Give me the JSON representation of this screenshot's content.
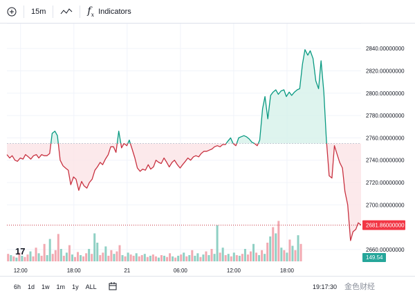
{
  "toolbar": {
    "add_icon": "plus-circle-icon",
    "interval": "15m",
    "chart_type_icon": "line-chart-icon",
    "indicators_icon": "fx-icon",
    "indicators_label": "Indicators"
  },
  "colors": {
    "up_line": "#089981",
    "down_line": "#c8303f",
    "up_fill": "#d6f1ea",
    "down_fill": "#fbe4e6",
    "vol_up": "#8fd0c4",
    "vol_down": "#f2a9b1",
    "last_price_bg": "#f23645",
    "last_vol_bg": "#26a69a",
    "grid": "#f0f3fa",
    "baseline": "#c2c8d3"
  },
  "chart_data": {
    "type": "line",
    "baseline": 2755,
    "ylim": [
      2655,
      2850
    ],
    "y_ticks": [
      "2840.00000000",
      "2820.00000000",
      "2800.00000000",
      "2780.00000000",
      "2760.00000000",
      "2740.00000000",
      "2720.00000000",
      "2700.00000000",
      "2660.00000000"
    ],
    "x_ticks": [
      "12:00",
      "18:00",
      "21",
      "06:00",
      "12:00",
      "18:00"
    ],
    "x_tick_pos": [
      4.4,
      21.6,
      38.8,
      56.0,
      73.2,
      90.4
    ],
    "x_max": 99.7,
    "price": [
      [
        0,
        2745
      ],
      [
        0.9,
        2742
      ],
      [
        1.7,
        2744
      ],
      [
        2.6,
        2740
      ],
      [
        3.4,
        2739
      ],
      [
        4.3,
        2742
      ],
      [
        5.2,
        2741
      ],
      [
        6.0,
        2745
      ],
      [
        6.9,
        2743
      ],
      [
        7.7,
        2741
      ],
      [
        8.6,
        2744
      ],
      [
        9.5,
        2745
      ],
      [
        10.3,
        2742
      ],
      [
        11.2,
        2745
      ],
      [
        12.0,
        2744
      ],
      [
        12.9,
        2744
      ],
      [
        13.8,
        2746
      ],
      [
        14.6,
        2764
      ],
      [
        15.5,
        2766
      ],
      [
        16.3,
        2762
      ],
      [
        17.2,
        2740
      ],
      [
        18.1,
        2735
      ],
      [
        18.9,
        2733
      ],
      [
        19.8,
        2731
      ],
      [
        20.6,
        2718
      ],
      [
        21.5,
        2725
      ],
      [
        22.3,
        2723
      ],
      [
        23.2,
        2713
      ],
      [
        24.1,
        2721
      ],
      [
        24.9,
        2717
      ],
      [
        25.8,
        2715
      ],
      [
        26.6,
        2720
      ],
      [
        27.5,
        2723
      ],
      [
        28.4,
        2731
      ],
      [
        29.2,
        2734
      ],
      [
        30.1,
        2738
      ],
      [
        30.9,
        2736
      ],
      [
        31.8,
        2741
      ],
      [
        32.7,
        2745
      ],
      [
        33.5,
        2752
      ],
      [
        34.4,
        2752
      ],
      [
        35.2,
        2747
      ],
      [
        36.1,
        2766
      ],
      [
        37.0,
        2751
      ],
      [
        37.8,
        2755
      ],
      [
        38.7,
        2753
      ],
      [
        39.5,
        2758
      ],
      [
        40.4,
        2750
      ],
      [
        41.3,
        2742
      ],
      [
        42.1,
        2733
      ],
      [
        43.0,
        2730
      ],
      [
        43.8,
        2732
      ],
      [
        44.7,
        2731
      ],
      [
        45.6,
        2736
      ],
      [
        46.4,
        2732
      ],
      [
        47.3,
        2734
      ],
      [
        48.1,
        2740
      ],
      [
        49.0,
        2738
      ],
      [
        49.8,
        2737
      ],
      [
        50.7,
        2742
      ],
      [
        51.6,
        2738
      ],
      [
        52.4,
        2734
      ],
      [
        53.3,
        2738
      ],
      [
        54.1,
        2740
      ],
      [
        55.0,
        2736
      ],
      [
        55.9,
        2733
      ],
      [
        56.7,
        2736
      ],
      [
        57.6,
        2739
      ],
      [
        58.4,
        2742
      ],
      [
        59.3,
        2740
      ],
      [
        60.2,
        2743
      ],
      [
        61.0,
        2744
      ],
      [
        61.9,
        2743
      ],
      [
        62.7,
        2746
      ],
      [
        63.6,
        2748
      ],
      [
        64.5,
        2748
      ],
      [
        65.3,
        2749
      ],
      [
        66.2,
        2750
      ],
      [
        67.0,
        2752
      ],
      [
        67.9,
        2753
      ],
      [
        68.8,
        2752
      ],
      [
        69.6,
        2754
      ],
      [
        70.5,
        2754
      ],
      [
        71.3,
        2757
      ],
      [
        72.2,
        2760
      ],
      [
        73.0,
        2755
      ],
      [
        73.9,
        2753
      ],
      [
        74.8,
        2760
      ],
      [
        75.6,
        2761
      ],
      [
        76.5,
        2762
      ],
      [
        77.3,
        2761
      ],
      [
        78.2,
        2759
      ],
      [
        79.1,
        2756
      ],
      [
        79.9,
        2755
      ],
      [
        80.8,
        2753
      ],
      [
        81.6,
        2758
      ],
      [
        82.5,
        2786
      ],
      [
        83.3,
        2797
      ],
      [
        84.2,
        2777
      ],
      [
        85.1,
        2798
      ],
      [
        85.9,
        2801
      ],
      [
        86.8,
        2803
      ],
      [
        87.6,
        2799
      ],
      [
        88.5,
        2802
      ],
      [
        89.4,
        2803
      ],
      [
        90.2,
        2797
      ],
      [
        91.1,
        2801
      ],
      [
        91.9,
        2798
      ],
      [
        92.8,
        2801
      ],
      [
        93.7,
        2803
      ],
      [
        94.5,
        2804
      ],
      [
        95.4,
        2826
      ],
      [
        96.2,
        2839
      ],
      [
        97.1,
        2834
      ],
      [
        97.9,
        2838
      ],
      [
        98.8,
        2831
      ],
      [
        99.7,
        2811
      ]
    ],
    "price_tail": [
      [
        100.6,
        2804
      ],
      [
        101.4,
        2829
      ],
      [
        102.3,
        2801
      ],
      [
        103.1,
        2759
      ],
      [
        104.0,
        2726
      ],
      [
        104.9,
        2724
      ],
      [
        105.7,
        2753
      ],
      [
        106.6,
        2745
      ],
      [
        107.4,
        2738
      ],
      [
        108.3,
        2733
      ],
      [
        109.1,
        2712
      ],
      [
        110.0,
        2700
      ],
      [
        110.9,
        2668
      ],
      [
        111.7,
        2676
      ],
      [
        112.6,
        2678
      ],
      [
        113.4,
        2684
      ],
      [
        114.3,
        2681.86
      ]
    ],
    "last_price": "2681.86000000",
    "last_volume": "149.54",
    "volume": [
      [
        0.5,
        12,
        "d"
      ],
      [
        1.4,
        10,
        "u"
      ],
      [
        2.3,
        8,
        "d"
      ],
      [
        3.2,
        6,
        "u"
      ],
      [
        4.1,
        14,
        "d"
      ],
      [
        5.0,
        9,
        "u"
      ],
      [
        5.9,
        7,
        "d"
      ],
      [
        6.8,
        11,
        "d"
      ],
      [
        7.7,
        16,
        "u"
      ],
      [
        8.6,
        8,
        "d"
      ],
      [
        9.5,
        22,
        "d"
      ],
      [
        10.4,
        13,
        "u"
      ],
      [
        11.3,
        9,
        "d"
      ],
      [
        12.2,
        28,
        "d"
      ],
      [
        13.1,
        10,
        "u"
      ],
      [
        14.0,
        36,
        "u"
      ],
      [
        14.9,
        12,
        "d"
      ],
      [
        15.8,
        18,
        "d"
      ],
      [
        16.7,
        44,
        "d"
      ],
      [
        17.6,
        20,
        "u"
      ],
      [
        18.5,
        9,
        "d"
      ],
      [
        19.4,
        14,
        "u"
      ],
      [
        20.3,
        26,
        "d"
      ],
      [
        21.2,
        11,
        "u"
      ],
      [
        22.1,
        7,
        "d"
      ],
      [
        23.0,
        15,
        "d"
      ],
      [
        23.9,
        10,
        "u"
      ],
      [
        24.8,
        8,
        "d"
      ],
      [
        25.7,
        13,
        "d"
      ],
      [
        26.6,
        20,
        "u"
      ],
      [
        27.5,
        12,
        "d"
      ],
      [
        28.4,
        45,
        "u"
      ],
      [
        29.3,
        30,
        "u"
      ],
      [
        30.2,
        10,
        "d"
      ],
      [
        31.1,
        14,
        "d"
      ],
      [
        32.0,
        24,
        "u"
      ],
      [
        32.9,
        9,
        "d"
      ],
      [
        33.8,
        18,
        "d"
      ],
      [
        34.7,
        12,
        "u"
      ],
      [
        35.6,
        16,
        "d"
      ],
      [
        36.5,
        26,
        "d"
      ],
      [
        37.4,
        10,
        "u"
      ],
      [
        38.3,
        8,
        "d"
      ],
      [
        39.2,
        14,
        "u"
      ],
      [
        40.1,
        11,
        "d"
      ],
      [
        41.0,
        9,
        "d"
      ],
      [
        41.9,
        13,
        "u"
      ],
      [
        42.8,
        8,
        "d"
      ],
      [
        43.7,
        10,
        "d"
      ],
      [
        44.6,
        12,
        "u"
      ],
      [
        45.5,
        7,
        "d"
      ],
      [
        46.4,
        9,
        "u"
      ],
      [
        47.3,
        11,
        "d"
      ],
      [
        48.2,
        8,
        "d"
      ],
      [
        49.1,
        6,
        "u"
      ],
      [
        50.0,
        10,
        "d"
      ],
      [
        50.9,
        9,
        "u"
      ],
      [
        51.8,
        7,
        "d"
      ],
      [
        52.7,
        13,
        "d"
      ],
      [
        53.6,
        8,
        "u"
      ],
      [
        54.5,
        6,
        "d"
      ],
      [
        55.4,
        9,
        "u"
      ],
      [
        56.3,
        11,
        "d"
      ],
      [
        57.2,
        14,
        "u"
      ],
      [
        58.1,
        8,
        "d"
      ],
      [
        59.0,
        10,
        "u"
      ],
      [
        59.9,
        18,
        "d"
      ],
      [
        60.8,
        9,
        "u"
      ],
      [
        61.7,
        13,
        "u"
      ],
      [
        62.6,
        7,
        "d"
      ],
      [
        63.5,
        11,
        "u"
      ],
      [
        64.4,
        16,
        "d"
      ],
      [
        65.3,
        10,
        "u"
      ],
      [
        66.2,
        20,
        "d"
      ],
      [
        67.1,
        12,
        "u"
      ],
      [
        68.0,
        58,
        "u"
      ],
      [
        68.9,
        14,
        "d"
      ],
      [
        69.8,
        22,
        "u"
      ],
      [
        70.7,
        10,
        "d"
      ],
      [
        71.6,
        12,
        "u"
      ],
      [
        72.5,
        8,
        "d"
      ],
      [
        73.4,
        14,
        "u"
      ],
      [
        74.3,
        10,
        "d"
      ],
      [
        75.2,
        9,
        "u"
      ],
      [
        76.1,
        12,
        "d"
      ],
      [
        77.0,
        20,
        "u"
      ],
      [
        77.9,
        11,
        "d"
      ],
      [
        78.8,
        16,
        "d"
      ],
      [
        79.7,
        28,
        "u"
      ],
      [
        80.6,
        14,
        "d"
      ],
      [
        81.5,
        10,
        "u"
      ],
      [
        82.4,
        18,
        "d"
      ],
      [
        83.3,
        12,
        "u"
      ],
      [
        84.2,
        30,
        "d"
      ],
      [
        85.1,
        40,
        "u"
      ],
      [
        86.0,
        55,
        "d"
      ],
      [
        86.9,
        45,
        "u"
      ],
      [
        87.8,
        65,
        "d"
      ],
      [
        88.7,
        22,
        "u"
      ],
      [
        89.6,
        18,
        "d"
      ],
      [
        90.5,
        14,
        "u"
      ],
      [
        91.4,
        35,
        "d"
      ],
      [
        92.3,
        25,
        "u"
      ],
      [
        93.2,
        18,
        "d"
      ],
      [
        94.1,
        42,
        "u"
      ],
      [
        95.0,
        28,
        "d"
      ]
    ]
  },
  "bottombar": {
    "ranges": [
      "6h",
      "1d",
      "1w",
      "1m",
      "1y",
      "ALL"
    ],
    "calendar_icon": "calendar-goto-icon",
    "clock": "19:17:30",
    "watermark": "金色财经"
  },
  "tv_logo": "17"
}
